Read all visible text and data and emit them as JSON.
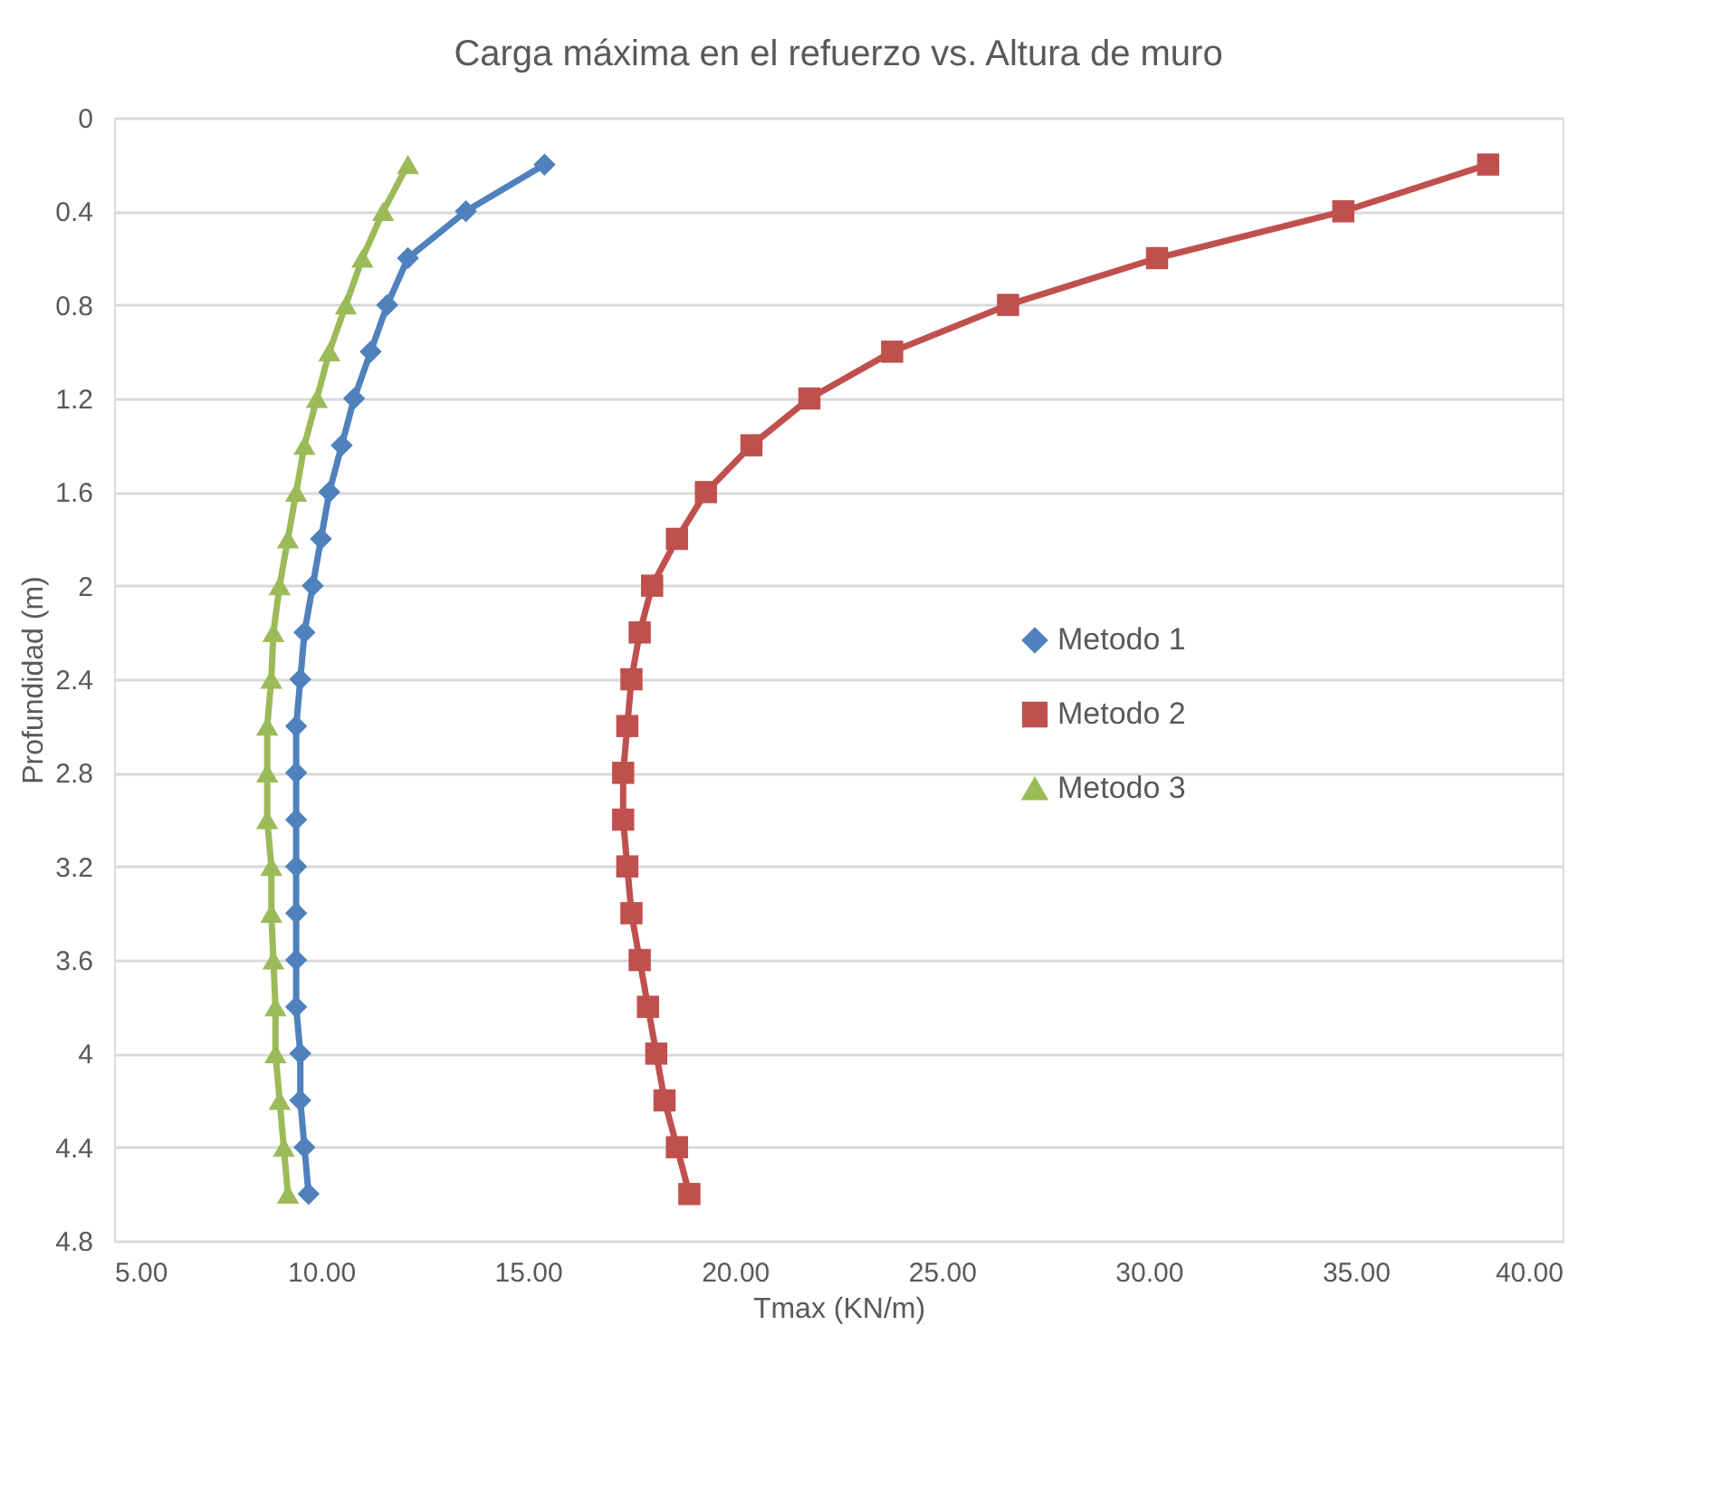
{
  "chart_data": {
    "type": "line",
    "title": "Carga máxima en el refuerzo vs. Altura de muro",
    "xlabel": "Tmax (KN/m)",
    "ylabel": "Profundidad (m)",
    "xlim": [
      5,
      40
    ],
    "xticks": [
      {
        "value": 5,
        "label": "5.00"
      },
      {
        "value": 10,
        "label": "10.00"
      },
      {
        "value": 15,
        "label": "15.00"
      },
      {
        "value": 20,
        "label": "20.00"
      },
      {
        "value": 25,
        "label": "25.00"
      },
      {
        "value": 30,
        "label": "30.00"
      },
      {
        "value": 35,
        "label": "35.00"
      },
      {
        "value": 40,
        "label": "40.00"
      }
    ],
    "ylim": [
      4.8,
      0
    ],
    "yticks": [
      0,
      0.4,
      0.8,
      1.2,
      1.6,
      2,
      2.4,
      2.8,
      3.2,
      3.6,
      4,
      4.4,
      4.8
    ],
    "grid": "y",
    "legend": "right",
    "line_style": "solid",
    "series": [
      {
        "name": "Metodo 1",
        "color": "#4f81bd",
        "marker": "diamond",
        "x": [
          15.4,
          13.5,
          12.1,
          11.6,
          11.2,
          10.8,
          10.5,
          10.2,
          10.0,
          9.8,
          9.6,
          9.5,
          9.4,
          9.4,
          9.4,
          9.4,
          9.4,
          9.4,
          9.4,
          9.5,
          9.5,
          9.6,
          9.7
        ],
        "values": [
          0.2,
          0.4,
          0.6,
          0.8,
          1.0,
          1.2,
          1.4,
          1.6,
          1.8,
          2.0,
          2.2,
          2.4,
          2.6,
          2.8,
          3.0,
          3.2,
          3.4,
          3.6,
          3.8,
          4.0,
          4.2,
          4.4,
          4.6
        ]
      },
      {
        "name": "Metodo 2",
        "color": "#c0504d",
        "marker": "square",
        "x": [
          38.2,
          34.7,
          30.2,
          26.6,
          23.8,
          21.8,
          20.4,
          19.3,
          18.6,
          18.0,
          17.7,
          17.5,
          17.4,
          17.3,
          17.3,
          17.4,
          17.5,
          17.7,
          17.9,
          18.1,
          18.3,
          18.6,
          18.9
        ],
        "values": [
          0.2,
          0.4,
          0.6,
          0.8,
          1.0,
          1.2,
          1.4,
          1.6,
          1.8,
          2.0,
          2.2,
          2.4,
          2.6,
          2.8,
          3.0,
          3.2,
          3.4,
          3.6,
          3.8,
          4.0,
          4.2,
          4.4,
          4.6
        ]
      },
      {
        "name": "Metodo 3",
        "color": "#9bbb59",
        "marker": "triangle",
        "x": [
          12.1,
          11.5,
          11.0,
          10.6,
          10.2,
          9.9,
          9.6,
          9.4,
          9.2,
          9.0,
          8.85,
          8.8,
          8.7,
          8.7,
          8.7,
          8.8,
          8.8,
          8.85,
          8.9,
          8.9,
          9.0,
          9.1,
          9.2
        ],
        "values": [
          0.2,
          0.4,
          0.6,
          0.8,
          1.0,
          1.2,
          1.4,
          1.6,
          1.8,
          2.0,
          2.2,
          2.4,
          2.6,
          2.8,
          3.0,
          3.2,
          3.4,
          3.6,
          3.8,
          4.0,
          4.2,
          4.4,
          4.6
        ]
      }
    ]
  }
}
